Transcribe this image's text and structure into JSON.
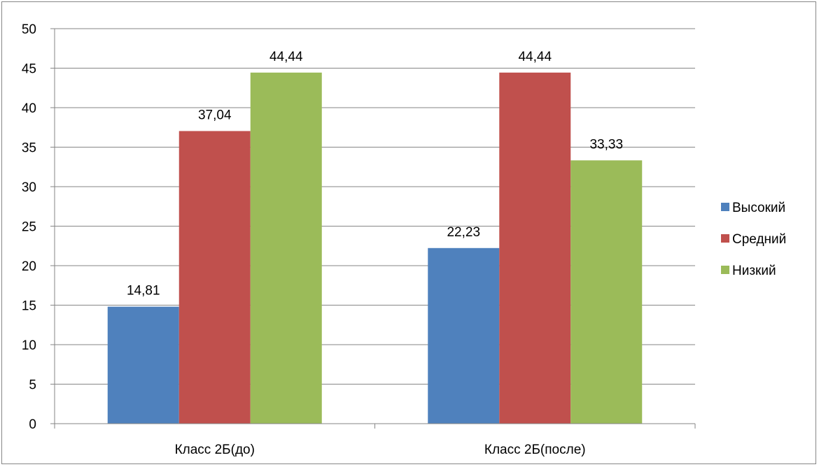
{
  "chart_data": {
    "type": "bar",
    "title": "",
    "xlabel": "",
    "ylabel": "",
    "categories": [
      "Класс 2Б(до)",
      "Класс 2Б(после)"
    ],
    "series": [
      {
        "name": "Высокий",
        "values": [
          14.81,
          22.23
        ],
        "labels": [
          "14,81",
          "22,23"
        ],
        "color": "#4f81bd"
      },
      {
        "name": "Средний",
        "values": [
          37.04,
          44.44
        ],
        "labels": [
          "37,04",
          "44,44"
        ],
        "color": "#c0504d"
      },
      {
        "name": "Низкий",
        "values": [
          44.44,
          33.33
        ],
        "labels": [
          "44,44",
          "33,33"
        ],
        "color": "#9bbb59"
      }
    ],
    "ylim": [
      0,
      50
    ],
    "yticks": [
      0,
      5,
      10,
      15,
      20,
      25,
      30,
      35,
      40,
      45,
      50
    ],
    "grid": true,
    "legend_position": "right"
  }
}
